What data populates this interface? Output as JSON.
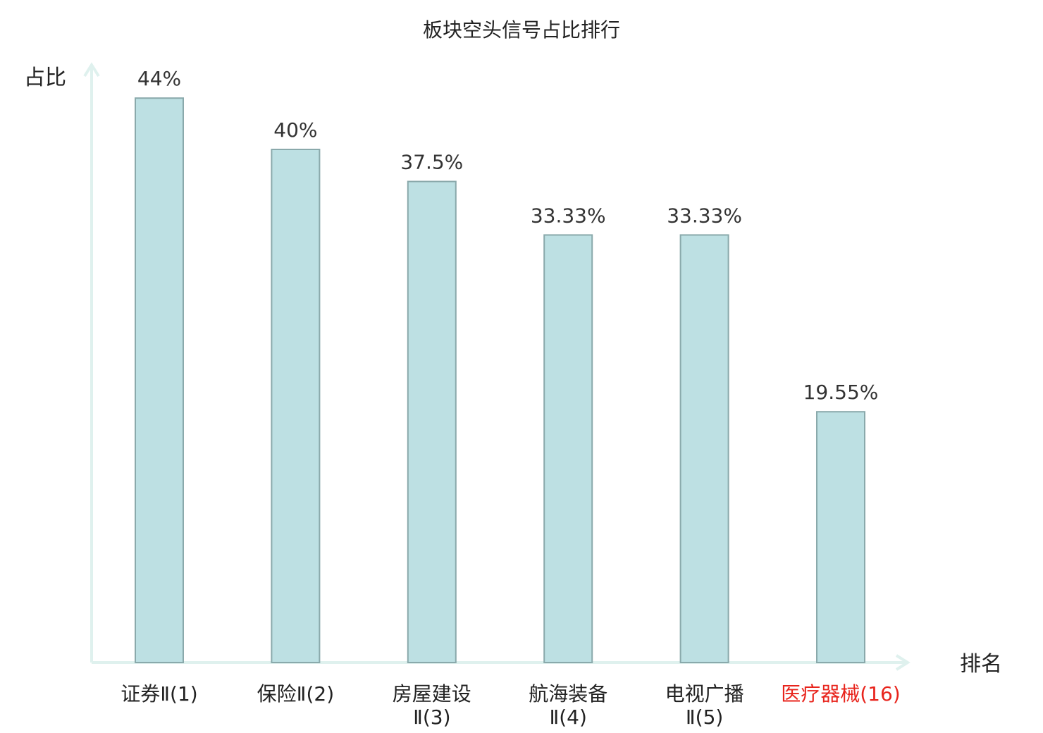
{
  "chart_data": {
    "type": "bar",
    "title": "板块空头信号占比排行",
    "ylabel": "占比",
    "xlabel": "排名",
    "ylim": [
      0,
      50
    ],
    "grid": false,
    "legend": "none",
    "colors": {
      "bar_fill": "#bde0e3",
      "bar_stroke": "#8aa9ab",
      "axis": "#dff1ee",
      "highlight_text": "#e8241c"
    },
    "categories": [
      {
        "lines": [
          "证券Ⅱ(1)"
        ],
        "highlight": false
      },
      {
        "lines": [
          "保险Ⅱ(2)"
        ],
        "highlight": false
      },
      {
        "lines": [
          "房屋建设",
          "Ⅱ(3)"
        ],
        "highlight": false
      },
      {
        "lines": [
          "航海装备",
          "Ⅱ(4)"
        ],
        "highlight": false
      },
      {
        "lines": [
          "电视广播",
          "Ⅱ(5)"
        ],
        "highlight": false
      },
      {
        "lines": [
          "医疗器械(16)"
        ],
        "highlight": true
      }
    ],
    "values": [
      44,
      40,
      37.5,
      33.33,
      33.33,
      19.55
    ],
    "value_labels": [
      "44%",
      "40%",
      "37.5%",
      "33.33%",
      "33.33%",
      "19.55%"
    ]
  }
}
